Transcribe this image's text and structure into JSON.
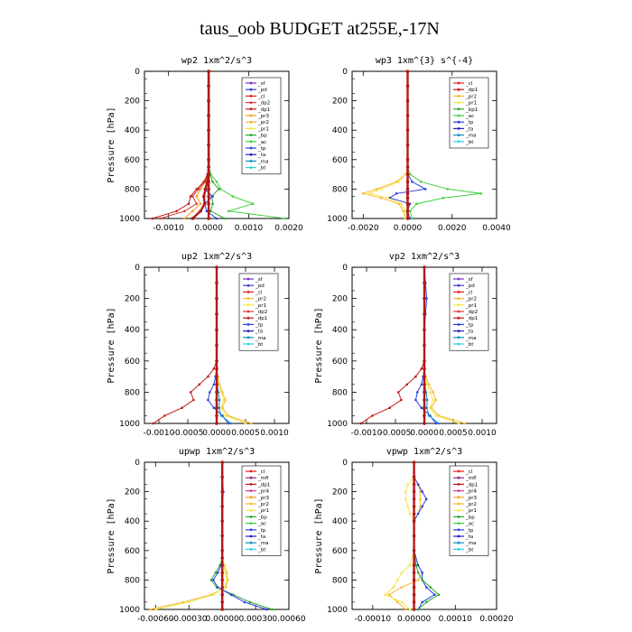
{
  "figure_title": "taus_oob  BUDGET at255E,-17N",
  "series_colors": {
    "_sf": "#7e2fc7",
    "_pd": "#3b3bd6",
    "_cl": "#e02020",
    "_dp2": "#d63b3b",
    "_dp1": "#c21a1a",
    "_pr3": "#f4a020",
    "_pr2": "#f7b733",
    "_pr1": "#f3e74a",
    "_bp": "#2ea82e",
    "_ac": "#40d040",
    "_tp": "#2a40e0",
    "_ta": "#2020c0",
    "_ma": "#1090c0",
    "_bt": "#30d0e0",
    "_mfl": "#8b2a8b",
    "_pr4": "#d040a0",
    "_bp1": "#30a830",
    "_pr5": "#e8c020"
  },
  "chart_data": [
    {
      "type": "line",
      "title": "wp2  1xm^2/s^3",
      "ylabel": "Pressure  [hPa]",
      "xlim": [
        -0.0016,
        0.002
      ],
      "ylim": [
        1000,
        0
      ],
      "xticks": [
        -0.001,
        0.0,
        0.001,
        0.002
      ],
      "xtick_labels": [
        "-0.0010",
        "0.0000",
        "0.0010",
        "0.0020"
      ],
      "yticks": [
        0,
        200,
        400,
        600,
        800,
        1000
      ],
      "ytick_labels": [
        "0",
        "200",
        "400",
        "600",
        "800",
        "1000"
      ],
      "legend": [
        "_sf",
        "_pd",
        "_cl",
        "_dp2",
        "_dp1",
        "_pr3",
        "_pr2",
        "_pr1",
        "_bp",
        "_ac",
        "_tp",
        "_ta",
        "_ma",
        "_bt"
      ],
      "pressure": [
        0,
        100,
        200,
        300,
        400,
        500,
        600,
        650,
        700,
        750,
        800,
        850,
        900,
        950,
        1000
      ],
      "series": [
        {
          "name": "_ac",
          "values": [
            0,
            0,
            0,
            0,
            0,
            0,
            0,
            1e-05,
            5e-05,
            0.0002,
            0.0003,
            0.0006,
            0.0011,
            0.0005,
            0.0019
          ]
        },
        {
          "name": "_bp",
          "values": [
            0,
            0,
            0,
            0,
            0,
            0,
            0,
            0,
            3e-05,
            0.0001,
            0.00025,
            8e-05,
            0.0001,
            5e-05,
            0.0004
          ]
        },
        {
          "name": "_tp",
          "values": [
            0,
            0,
            0,
            0,
            0,
            0,
            0,
            0,
            -2e-05,
            -5e-05,
            -0.0001,
            0.0001,
            -0.0001,
            -5e-05,
            0.0002
          ]
        },
        {
          "name": "_pr3",
          "values": [
            0,
            0,
            0,
            0,
            0,
            0,
            0,
            0,
            -2e-05,
            -8e-05,
            -0.0002,
            -0.0003,
            -0.0002,
            -0.0004,
            -0.0006
          ]
        },
        {
          "name": "_dp2",
          "values": [
            0,
            0,
            0,
            0,
            0,
            0,
            0,
            0,
            -2e-05,
            -0.0001,
            -0.00025,
            -0.0004,
            -0.0003,
            -0.0006,
            -0.0012
          ]
        },
        {
          "name": "_dp1",
          "values": [
            0,
            0,
            0,
            0,
            0,
            0,
            0,
            0,
            -3e-05,
            -0.00012,
            -0.0003,
            -0.00045,
            -0.0005,
            -0.0008,
            -0.0014
          ]
        },
        {
          "name": "_cl",
          "values": [
            0,
            0,
            0,
            0,
            0,
            0,
            0,
            0,
            -1e-05,
            -3e-05,
            -8e-05,
            -0.00012,
            -0.0001,
            -0.0002,
            -0.0004
          ]
        },
        {
          "name": "_sf",
          "values": [
            0,
            0,
            0,
            0,
            0,
            0,
            0,
            0,
            0,
            0,
            0,
            0,
            0,
            0,
            0
          ]
        }
      ]
    },
    {
      "type": "line",
      "title": "wp3  1xm^{3} s^{-4}",
      "ylabel": "",
      "xlim": [
        -0.0025,
        0.004
      ],
      "ylim": [
        1000,
        0
      ],
      "xticks": [
        -0.002,
        0.0,
        0.002,
        0.004
      ],
      "xtick_labels": [
        "-0.0020",
        "0.0000",
        "0.0020",
        "0.0040"
      ],
      "yticks": [
        0,
        200,
        400,
        600,
        800,
        1000
      ],
      "ytick_labels": [
        "0",
        "200",
        "400",
        "600",
        "800",
        "1000"
      ],
      "legend": [
        "_cl",
        "_dp1",
        "_pr2",
        "_pr1",
        "_bp1",
        "_ac",
        "_tp",
        "_ta",
        "_ma",
        "_bt"
      ],
      "pressure": [
        0,
        100,
        200,
        300,
        400,
        500,
        600,
        650,
        700,
        750,
        800,
        830,
        860,
        900,
        950,
        1000
      ],
      "series": [
        {
          "name": "_ac",
          "values": [
            0,
            0,
            0,
            0,
            0,
            0,
            0,
            0,
            0.0001,
            0.0006,
            0.0018,
            0.0033,
            0.0016,
            0.0004,
            0.0001,
            0.0002
          ]
        },
        {
          "name": "_tp",
          "values": [
            0,
            0,
            0,
            0,
            0,
            0,
            0,
            0,
            0,
            0.0002,
            0.0008,
            -0.0005,
            -0.0008,
            0.0001,
            0.0,
            0.0001
          ]
        },
        {
          "name": "_pr2",
          "values": [
            0,
            0,
            0,
            0,
            0,
            0,
            0,
            0,
            -0.0001,
            -0.0005,
            -0.0014,
            -0.002,
            -0.0012,
            -0.0004,
            -0.0002,
            -0.0001
          ]
        },
        {
          "name": "_pr1",
          "values": [
            0,
            0,
            0,
            0,
            0,
            0,
            0,
            0,
            -0.0001,
            -0.0004,
            -0.0012,
            -0.0017,
            -0.0009,
            -0.0003,
            -0.0001,
            -0.0001
          ]
        },
        {
          "name": "_cl",
          "values": [
            0,
            0,
            0,
            0,
            0,
            0,
            0,
            0,
            0,
            0,
            0,
            0,
            0,
            0,
            0,
            0
          ]
        }
      ]
    },
    {
      "type": "line",
      "title": "up2   1xm^2/s^3",
      "ylabel": "Pressure  [hPa]",
      "xlim": [
        -0.00125,
        0.00125
      ],
      "ylim": [
        1000,
        0
      ],
      "xticks": [
        -0.001,
        -0.0005,
        0.0,
        0.0005,
        0.001
      ],
      "xtick_labels": [
        "-0.0010",
        "-0.0005",
        "0.0000",
        "0.0005",
        "0.0010"
      ],
      "yticks": [
        0,
        200,
        400,
        600,
        800,
        1000
      ],
      "ytick_labels": [
        "0",
        "200",
        "400",
        "600",
        "800",
        "1000"
      ],
      "legend": [
        "_sf",
        "_pd",
        "_cl",
        "_pr2",
        "_pr1",
        "_dp2",
        "_dp1",
        "_tp",
        "_ta",
        "_ma",
        "_bt"
      ],
      "pressure": [
        0,
        100,
        200,
        300,
        400,
        500,
        600,
        650,
        700,
        750,
        800,
        850,
        900,
        950,
        1000
      ],
      "series": [
        {
          "name": "_dp1",
          "values": [
            0,
            0,
            0,
            0,
            0,
            0,
            0,
            -5e-05,
            -0.00015,
            -0.0003,
            -0.00045,
            -0.0004,
            -0.0006,
            -0.0009,
            -0.0011
          ]
        },
        {
          "name": "_tp",
          "values": [
            0,
            0,
            0,
            0,
            0,
            0,
            0,
            0,
            -2e-05,
            -5e-05,
            -0.00012,
            -0.00015,
            -5e-05,
            0.0001,
            0.0002
          ]
        },
        {
          "name": "_pr2",
          "values": [
            0,
            0,
            0,
            0,
            0,
            0,
            0,
            0,
            2e-05,
            5e-05,
            0.0001,
            0.00015,
            0.0001,
            0.0002,
            0.0006
          ]
        },
        {
          "name": "_pr1",
          "values": [
            0,
            0,
            0,
            0,
            0,
            0,
            0,
            0,
            1e-05,
            3e-05,
            8e-05,
            0.00012,
            8e-05,
            0.00015,
            0.0005
          ]
        },
        {
          "name": "_ma",
          "values": [
            0,
            0,
            0,
            0,
            0,
            0,
            0,
            0,
            0,
            1e-05,
            3e-05,
            5e-05,
            4e-05,
            8e-05,
            0.00025
          ]
        },
        {
          "name": "_cl",
          "values": [
            0,
            0,
            0,
            0,
            0,
            0,
            0,
            0,
            0,
            0,
            0,
            0,
            0,
            0,
            0
          ]
        }
      ]
    },
    {
      "type": "line",
      "title": "vp2   1xm^2/s^3",
      "ylabel": "Pressure  [hPa]",
      "xlim": [
        -0.00125,
        0.00125
      ],
      "ylim": [
        1000,
        0
      ],
      "xticks": [
        -0.001,
        -0.0005,
        0.0,
        0.0005,
        0.001
      ],
      "xtick_labels": [
        "-0.0010",
        "-0.0005",
        "0.0000",
        "0.0005",
        "0.0010"
      ],
      "yticks": [
        0,
        200,
        400,
        600,
        800,
        1000
      ],
      "ytick_labels": [
        "0",
        "200",
        "400",
        "600",
        "800",
        "1000"
      ],
      "legend": [
        "_sf",
        "_pd",
        "_cl",
        "_pr2",
        "_pr1",
        "_dp2",
        "_dp1",
        "_tp",
        "_ta",
        "_ma",
        "_bt"
      ],
      "pressure": [
        0,
        100,
        200,
        300,
        400,
        500,
        600,
        650,
        700,
        750,
        800,
        850,
        900,
        950,
        1000
      ],
      "series": [
        {
          "name": "_dp1",
          "values": [
            0,
            0,
            0,
            0,
            0,
            0,
            0,
            -5e-05,
            -0.00015,
            -0.0003,
            -0.00045,
            -0.0004,
            -0.0006,
            -0.0009,
            -0.0011
          ]
        },
        {
          "name": "_tp",
          "values": [
            0,
            2e-05,
            4e-05,
            2e-05,
            0,
            0,
            0,
            0,
            -2e-05,
            -5e-05,
            -0.00012,
            -0.00015,
            -5e-05,
            0.0001,
            0.0002
          ]
        },
        {
          "name": "_pr2",
          "values": [
            0,
            0,
            0,
            0,
            0,
            0,
            0,
            0,
            2e-05,
            8e-05,
            0.00015,
            0.0002,
            0.00012,
            0.00025,
            0.0007
          ]
        },
        {
          "name": "_pr1",
          "values": [
            0,
            0,
            0,
            0,
            0,
            0,
            0,
            0,
            1e-05,
            5e-05,
            0.0001,
            0.00015,
            0.0001,
            0.0002,
            0.0006
          ]
        },
        {
          "name": "_ma",
          "values": [
            0,
            0,
            0,
            0,
            0,
            0,
            0,
            0,
            0,
            1e-05,
            3e-05,
            5e-05,
            4e-05,
            8e-05,
            0.00025
          ]
        },
        {
          "name": "_cl",
          "values": [
            0,
            0,
            0,
            0,
            0,
            0,
            0,
            0,
            0,
            0,
            0,
            0,
            0,
            0,
            0
          ]
        }
      ]
    },
    {
      "type": "line",
      "title": "upwp   1xm^2/s^3",
      "ylabel": "Pressure  [hPa]",
      "xlim": [
        -0.0007,
        0.0006
      ],
      "ylim": [
        1000,
        0
      ],
      "xticks": [
        -0.0006,
        -0.0003,
        0.0,
        0.0003,
        0.0006
      ],
      "xtick_labels": [
        "-0.00060",
        "-0.00030",
        "0.00000",
        "0.00030",
        "0.00060"
      ],
      "yticks": [
        0,
        200,
        400,
        600,
        800,
        1000
      ],
      "ytick_labels": [
        "0",
        "200",
        "400",
        "600",
        "800",
        "1000"
      ],
      "legend": [
        "_cl",
        "_mfl",
        "_dp1",
        "_pr4",
        "_pr3",
        "_pr2",
        "_pr1",
        "_bp",
        "_ac",
        "_tp",
        "_ta",
        "_ma",
        "_bt"
      ],
      "pressure": [
        0,
        100,
        200,
        300,
        400,
        500,
        600,
        650,
        700,
        750,
        800,
        850,
        900,
        950,
        1000
      ],
      "series": [
        {
          "name": "_pr2",
          "values": [
            0,
            0,
            0,
            0,
            0,
            0,
            0,
            0,
            2e-05,
            4e-05,
            5e-05,
            3e-05,
            -0.0001,
            -0.00035,
            -0.00065
          ]
        },
        {
          "name": "_pr1",
          "values": [
            0,
            0,
            0,
            0,
            0,
            0,
            0,
            0,
            1e-05,
            3e-05,
            4e-05,
            2e-05,
            -8e-05,
            -0.0003,
            -0.0006
          ]
        },
        {
          "name": "_bp",
          "values": [
            0,
            0,
            0,
            0,
            0,
            0,
            0,
            0,
            -2e-05,
            -6e-05,
            -0.0001,
            -5e-05,
            0.0001,
            0.00025,
            0.00045
          ]
        },
        {
          "name": "_tp",
          "values": [
            0,
            0,
            1e-05,
            0,
            0,
            0,
            0,
            0,
            -1e-05,
            -4e-05,
            -8e-05,
            -4e-05,
            8e-05,
            0.0002,
            0.0004
          ]
        },
        {
          "name": "_cl",
          "values": [
            0,
            0,
            0,
            0,
            0,
            0,
            0,
            0,
            0,
            0,
            0,
            0,
            0,
            0,
            0
          ]
        }
      ]
    },
    {
      "type": "line",
      "title": "vpwp   1xm^2/s^3",
      "ylabel": "Pressure  [hPa]",
      "xlim": [
        -0.00015,
        0.0002
      ],
      "ylim": [
        1000,
        0
      ],
      "xticks": [
        -0.0001,
        0.0,
        0.0001,
        0.0002
      ],
      "xtick_labels": [
        "-0.00010",
        "0.00000",
        "0.00010",
        "0.00020"
      ],
      "yticks": [
        0,
        200,
        400,
        600,
        800,
        1000
      ],
      "ytick_labels": [
        "0",
        "200",
        "400",
        "600",
        "800",
        "1000"
      ],
      "legend": [
        "_cl",
        "_mfl",
        "_dp1",
        "_pr4",
        "_pr3",
        "_pr2",
        "_pr1",
        "_bp",
        "_ac",
        "_tp",
        "_ta",
        "_ma",
        "_bt"
      ],
      "pressure": [
        0,
        100,
        150,
        200,
        250,
        300,
        350,
        400,
        500,
        600,
        700,
        750,
        800,
        850,
        900,
        950,
        1000
      ],
      "series": [
        {
          "name": "_pr2",
          "values": [
            0,
            0,
            1e-05,
            1.5e-05,
            1.5e-05,
            1.5e-05,
            1e-05,
            0,
            0,
            0,
            1e-05,
            2e-05,
            1e-05,
            -3e-05,
            -6e-05,
            -4e-05,
            -2e-05
          ]
        },
        {
          "name": "_pr1",
          "values": [
            0,
            0,
            -1.5e-05,
            -2e-05,
            -2e-05,
            -1.5e-05,
            -1e-05,
            0,
            0,
            0,
            -1e-05,
            -3e-05,
            -4e-05,
            -5e-05,
            -7e-05,
            -3e-05,
            -1e-05
          ]
        },
        {
          "name": "_tp",
          "values": [
            0,
            0,
            1e-05,
            2e-05,
            3e-05,
            2e-05,
            1e-05,
            0,
            0,
            0,
            1e-05,
            2e-05,
            2e-05,
            3e-05,
            5e-05,
            2e-05,
            1e-05
          ]
        },
        {
          "name": "_bp",
          "values": [
            0,
            0,
            0,
            0,
            0,
            0,
            0,
            0,
            0,
            0,
            5e-06,
            1e-05,
            2e-05,
            4e-05,
            6e-05,
            3e-05,
            1e-05
          ]
        },
        {
          "name": "_cl",
          "values": [
            0,
            0,
            0,
            0,
            0,
            0,
            0,
            0,
            0,
            0,
            0,
            0,
            0,
            0,
            0,
            0,
            0
          ]
        }
      ]
    }
  ]
}
